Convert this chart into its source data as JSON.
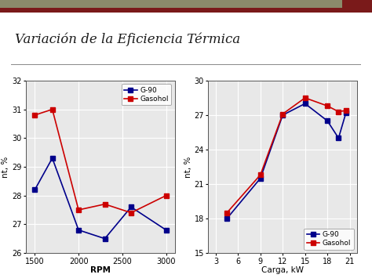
{
  "title": "Variación de la Eficiencia Térmica",
  "title_color": "#1a1a1a",
  "bg_color": "#ffffff",
  "header_bar1_color": "#8b8b6b",
  "header_bar2_color": "#7a1a1a",
  "chart1": {
    "x": [
      1500,
      1700,
      2000,
      2300,
      2600,
      3000
    ],
    "g90_y": [
      28.2,
      29.3,
      26.8,
      26.5,
      27.6,
      26.8
    ],
    "gasohol_y": [
      30.8,
      31.0,
      27.5,
      27.7,
      27.4,
      28.0
    ],
    "xlabel": "RPM",
    "ylabel": "nt, %",
    "ylim": [
      26,
      32
    ],
    "yticks": [
      26,
      27,
      28,
      29,
      30,
      31,
      32
    ],
    "xlim": [
      1400,
      3100
    ],
    "xticks": [
      1500,
      2000,
      2500,
      3000
    ]
  },
  "chart2": {
    "x": [
      4.5,
      9,
      12,
      15,
      18,
      19.5,
      20.5
    ],
    "g90_y": [
      18.0,
      21.5,
      27.0,
      28.0,
      26.5,
      25.0,
      27.2
    ],
    "gasohol_y": [
      18.5,
      21.8,
      27.1,
      28.5,
      27.8,
      27.3,
      27.4
    ],
    "xlabel": "Carga, kW",
    "ylabel": "nt, %",
    "ylim": [
      15,
      30
    ],
    "yticks": [
      15,
      18,
      21,
      24,
      27,
      30
    ],
    "xlim": [
      2,
      22
    ],
    "xticks": [
      3,
      6,
      9,
      12,
      15,
      18,
      21
    ]
  },
  "g90_color": "#00008b",
  "gasohol_color": "#cc0000",
  "legend_g90": "G-90",
  "legend_gasohol": "Gasohol",
  "markersize": 4,
  "linewidth": 1.2,
  "chart_bg": "#e8e8e8",
  "grid_color": "#ffffff",
  "tick_fontsize": 7,
  "label_fontsize": 7.5,
  "legend_fontsize": 6.5
}
